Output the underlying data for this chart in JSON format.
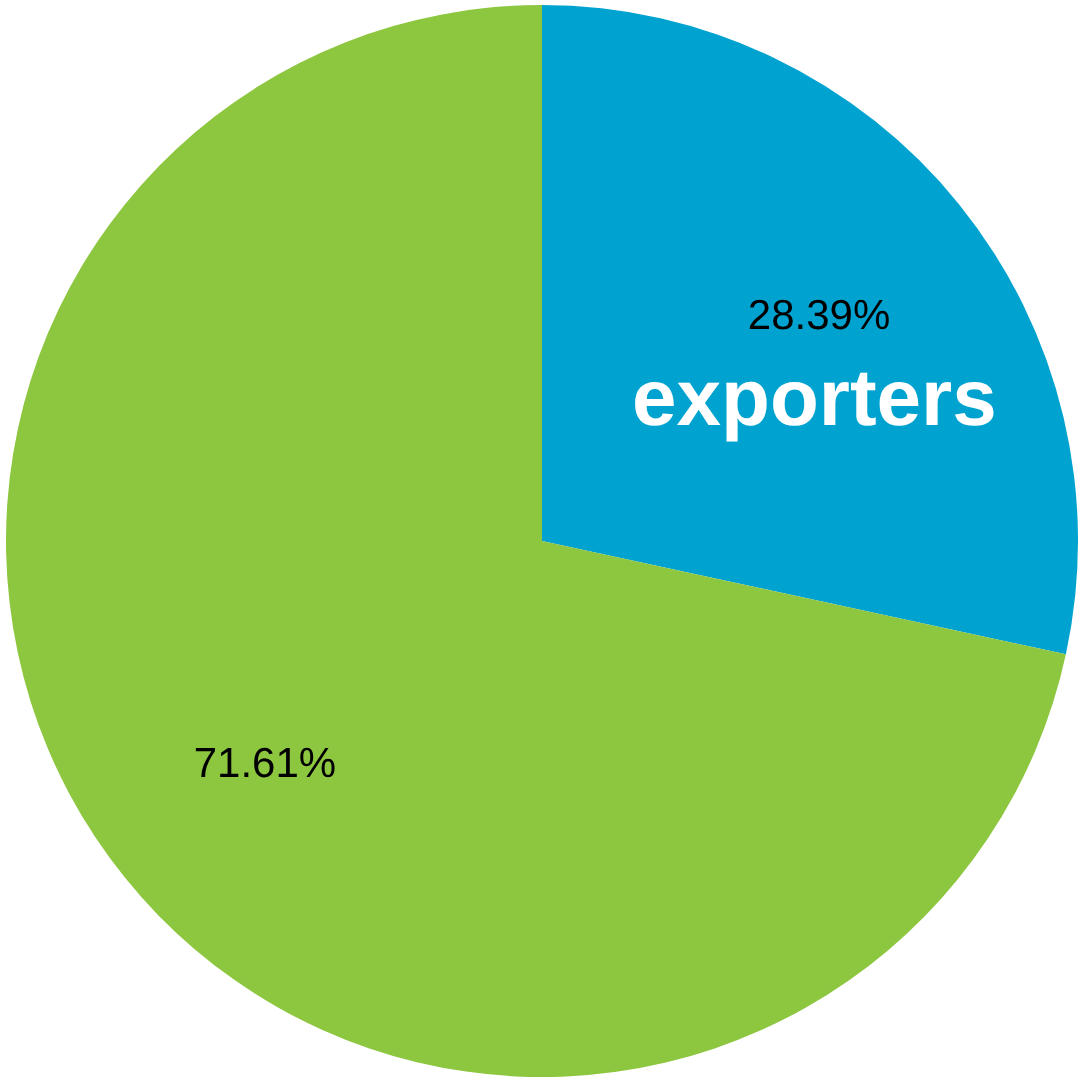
{
  "chart_data": {
    "type": "pie",
    "categories": [
      "exporters",
      null
    ],
    "values": [
      28.39,
      71.61
    ],
    "colors": [
      "#00a3d0",
      "#8dc63f"
    ],
    "value_labels": [
      "28.39%",
      "71.61%"
    ]
  }
}
